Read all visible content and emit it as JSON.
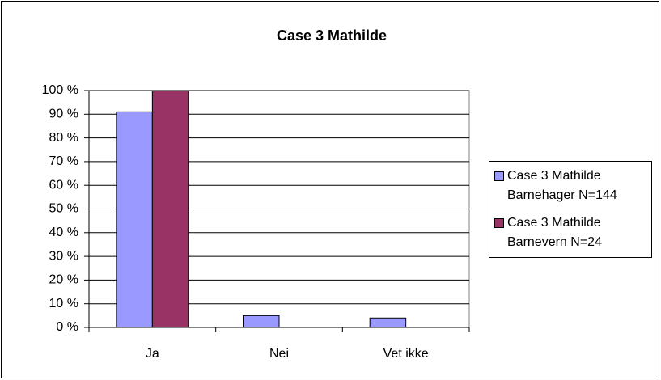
{
  "chart_data": {
    "type": "bar",
    "title": "Case 3 Mathilde",
    "categories": [
      "Ja",
      "Nei",
      "Vet ikke"
    ],
    "series": [
      {
        "name": "Case 3 Mathilde Barnehager N=144",
        "color": "#9999ff",
        "values": [
          91,
          5,
          4
        ]
      },
      {
        "name": "Case 3 Mathilde Barnevern N=24",
        "color": "#993366",
        "values": [
          100,
          0,
          0
        ]
      }
    ],
    "ylim": [
      0,
      100
    ],
    "yticks": [
      {
        "value": 0,
        "label": "0 %"
      },
      {
        "value": 10,
        "label": "10 %"
      },
      {
        "value": 20,
        "label": "20 %"
      },
      {
        "value": 30,
        "label": "30 %"
      },
      {
        "value": 40,
        "label": "40 %"
      },
      {
        "value": 50,
        "label": "50 %"
      },
      {
        "value": 60,
        "label": "60 %"
      },
      {
        "value": 70,
        "label": "70 %"
      },
      {
        "value": 80,
        "label": "80 %"
      },
      {
        "value": 90,
        "label": "90 %"
      },
      {
        "value": 100,
        "label": "100 %"
      }
    ],
    "grid": true,
    "legend": "right"
  }
}
